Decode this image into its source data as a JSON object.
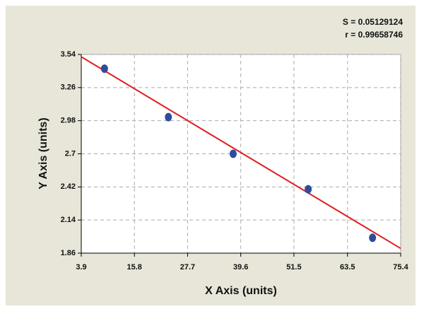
{
  "chart_data": {
    "type": "scatter",
    "annotations": [
      "S = 0.05129124",
      "r = 0.99658746"
    ],
    "x_label": "X Axis (units)",
    "y_label": "Y Axis (units)",
    "x": [
      9.1,
      23.4,
      37.9,
      54.7,
      69.1
    ],
    "values": [
      3.42,
      3.01,
      2.7,
      2.4,
      1.99
    ],
    "color": "#2f4c9c",
    "fit": {
      "x": [
        3.9,
        75.4
      ],
      "y": [
        3.52,
        1.9
      ],
      "color": "#e01f1f"
    },
    "xlim": [
      3.9,
      75.4
    ],
    "xticks": [
      3.9,
      15.8,
      27.7,
      39.6,
      51.5,
      63.5,
      75.4
    ],
    "ylim": [
      1.86,
      3.54
    ],
    "yticks": [
      1.86,
      2.14,
      2.42,
      2.7,
      2.98,
      3.26,
      3.54
    ],
    "grid": true
  }
}
